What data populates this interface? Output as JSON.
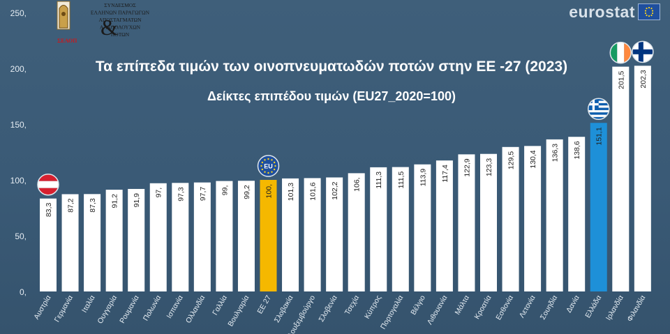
{
  "chart_data": {
    "type": "bar",
    "title": "Τα επίπεδα τιμών των οινοπνευματωδών ποτών στην ΕΕ -27 (2023)",
    "subtitle": "Δείκτες επιπέδου τιμών (EU27_2020=100)",
    "categories": [
      "Αυστρία",
      "Γερμανία",
      "Ιταλία",
      "Ουγγαρία",
      "Ρουμανία",
      "Πολωνία",
      "Ισπανία",
      "Ολλανδία",
      "Γαλλία",
      "Βουλγαρία",
      "ΕΕ 27",
      "Σλοβακία",
      "Λουξεμβούργο",
      "Σλοβενία",
      "Τσεχία",
      "Κύπρος",
      "Πορτογαλία",
      "Βέλγιο",
      "Λιθουανία",
      "Μάλτα",
      "Κροατία",
      "Εσθονία",
      "Λετονία",
      "Σουηδία",
      "Δανία",
      "Ελλάδα",
      "Ιρλανδία",
      "Φιλανδία"
    ],
    "values": [
      83.3,
      87.2,
      87.3,
      91.2,
      91.9,
      97,
      97.3,
      97.7,
      99,
      99.2,
      100,
      101.3,
      101.6,
      102.2,
      106,
      111.3,
      111.5,
      113.9,
      117.4,
      122.9,
      123.3,
      129.5,
      130.4,
      136.3,
      138.6,
      151.1,
      201.5,
      202.3
    ],
    "value_labels": [
      "83,3",
      "87,2",
      "87,3",
      "91,2",
      "91,9",
      "97,",
      "97,3",
      "97,7",
      "99,",
      "99,2",
      "100,",
      "101,3",
      "101,6",
      "102,2",
      "106,",
      "111,3",
      "111,5",
      "113,9",
      "117,4",
      "122,9",
      "123,3",
      "129,5",
      "130,4",
      "136,3",
      "138,6",
      "151,1",
      "201,5",
      "202,3"
    ],
    "bar_colors": {
      "default": "#ffffff",
      "ΕΕ 27": "#f5b800",
      "Ελλάδα": "#1e90d8"
    },
    "ylim": [
      0,
      250
    ],
    "yticks": [
      0,
      50,
      100,
      150,
      200,
      250
    ],
    "ytick_labels": [
      "0,",
      "50,",
      "100,",
      "150,",
      "200,",
      "250,"
    ],
    "xlabel": "",
    "ylabel": "",
    "grid": false,
    "legend": "none",
    "flags": [
      "Αυστρία",
      "ΕΕ 27",
      "Ελλάδα",
      "Ιρλανδία",
      "Φιλανδία"
    ]
  },
  "header": {
    "brand": "eurostat",
    "logo_lines": [
      "ΣΥΝΔΕΣΜΟΣ",
      "ΕΛΛΗΝΩΝ ΠΑΡΑΓΩΓΩΝ",
      "ΑΠΟΣΤΑΓΜΑΤΩΝ",
      "ΑΛΚΟΟΛΟΥΧΩΝ",
      "ΠΟΤΩΝ"
    ],
    "logo_mark": "&",
    "logo_acronym": "ΣΕΑΟΠ",
    "eu_badge": "EU"
  },
  "colors": {
    "background": "#3c5c77",
    "text": "#ffffff",
    "axis_text": "#e6edf3"
  }
}
